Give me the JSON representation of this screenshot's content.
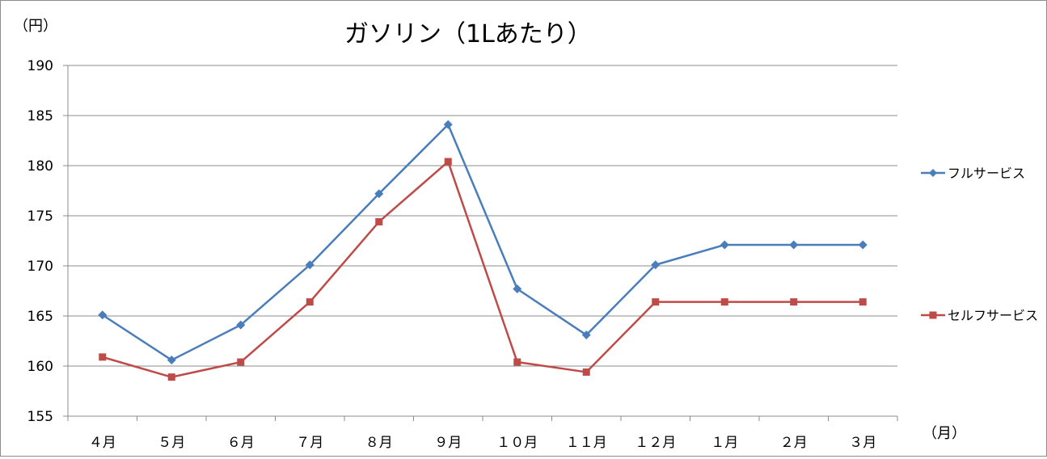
{
  "chart_data": {
    "type": "line",
    "title": "ガソリン（1Lあたり）",
    "y_unit_label": "（円）",
    "x_unit_label": "（月）",
    "categories": [
      "４月",
      "５月",
      "６月",
      "７月",
      "８月",
      "９月",
      "１０月",
      "１１月",
      "１２月",
      "１月",
      "２月",
      "３月"
    ],
    "ylim": [
      155,
      190
    ],
    "yticks": [
      155,
      160,
      165,
      170,
      175,
      180,
      185,
      190
    ],
    "grid": true,
    "legend_position": "right",
    "series": [
      {
        "name": "フルサービス",
        "color": "#4a7ebb",
        "marker": "diamond",
        "values": [
          165.1,
          160.6,
          164.1,
          170.1,
          177.2,
          184.1,
          167.7,
          163.1,
          170.1,
          172.1,
          172.1,
          172.1
        ]
      },
      {
        "name": "セルフサービス",
        "color": "#be4b48",
        "marker": "square",
        "values": [
          160.9,
          158.9,
          160.4,
          166.4,
          174.4,
          180.4,
          160.4,
          159.4,
          166.4,
          166.4,
          166.4,
          166.4
        ]
      }
    ]
  }
}
